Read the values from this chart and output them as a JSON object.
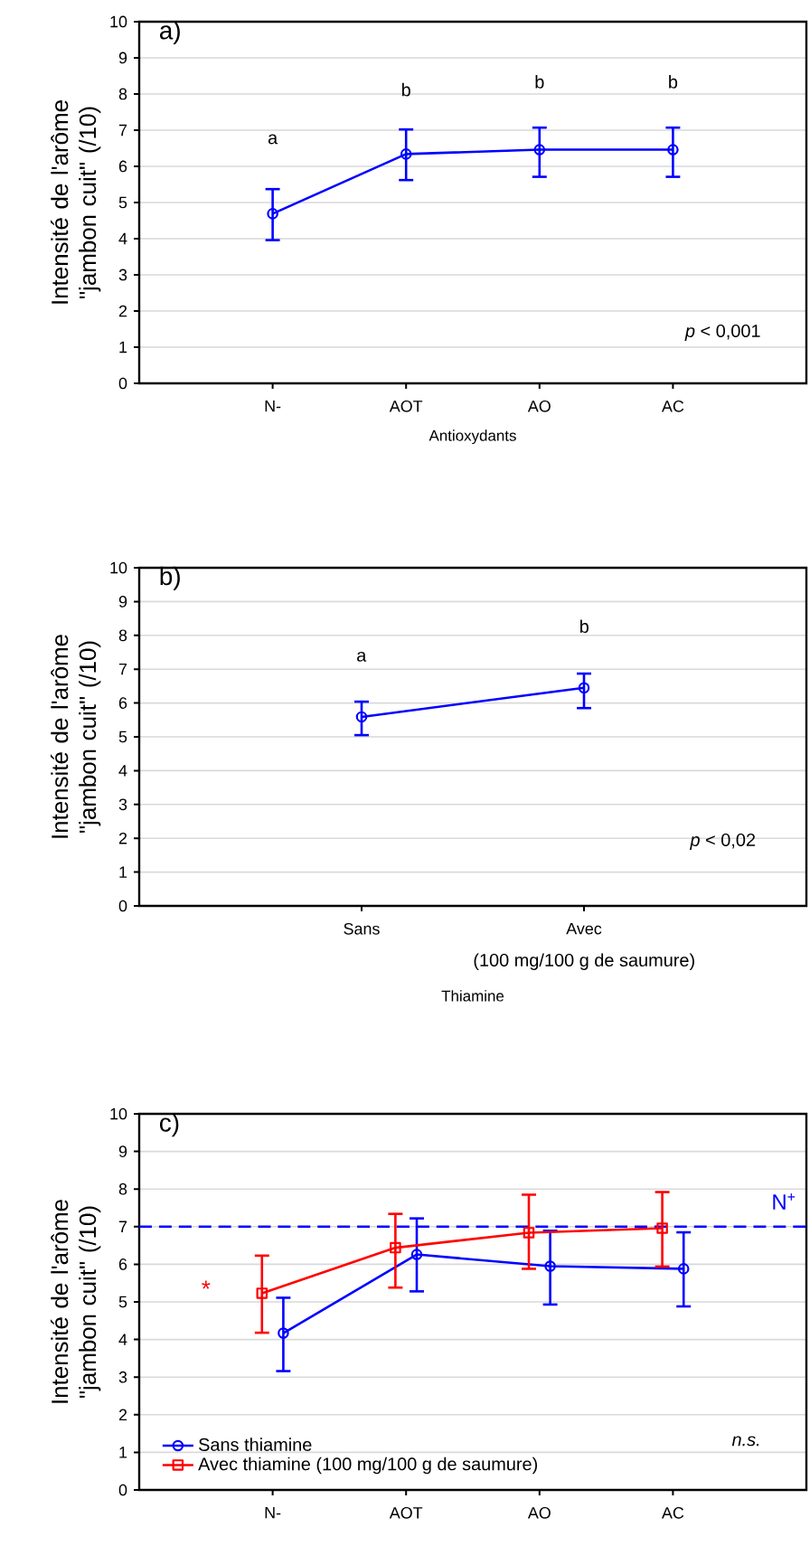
{
  "chart_data": [
    {
      "type": "line",
      "title": "a)",
      "xlabel": "Antioxydants",
      "ylabel": "Intensité de l'arôme \"jambon cuit\" (/10)",
      "categories": [
        "N-",
        "AOT",
        "AO",
        "AC"
      ],
      "values": [
        4.69,
        6.34,
        6.46,
        6.46
      ],
      "errors": [
        [
          3.96,
          5.37
        ],
        [
          5.62,
          7.02
        ],
        [
          5.71,
          7.07
        ],
        [
          5.71,
          7.07
        ]
      ],
      "color": "#0000ff",
      "marker": "circle",
      "ylim": [
        0,
        10
      ],
      "yticks": [
        0,
        1,
        2,
        3,
        4,
        5,
        6,
        7,
        8,
        9,
        10
      ],
      "grid": "y",
      "annotations": [
        "a",
        "b",
        "b",
        "b",
        "*p* < 0,001"
      ]
    },
    {
      "type": "line",
      "title": "b)",
      "xlabel": "Thiamine",
      "ylabel": "Intensité de l'arôme \"jambon cuit\" (/10)",
      "categories": [
        "Sans",
        "Avec"
      ],
      "values": [
        5.59,
        6.45
      ],
      "errors": [
        [
          5.05,
          6.04
        ],
        [
          5.85,
          6.87
        ]
      ],
      "color": "#0000ff",
      "marker": "circle",
      "ylim": [
        0,
        10
      ],
      "yticks": [
        0,
        1,
        2,
        3,
        4,
        5,
        6,
        7,
        8,
        9,
        10
      ],
      "grid": "y",
      "annotations": [
        "a",
        "b",
        "*p* < 0,02",
        "(100 mg/100 g de saumure)"
      ]
    },
    {
      "type": "line",
      "title": "c)",
      "ylabel": "Intensité de l'arôme \"jambon cuit\" (/10)",
      "categories": [
        "N-",
        "AOT",
        "AO",
        "AC"
      ],
      "ylim": [
        0,
        10
      ],
      "yticks": [
        0,
        1,
        2,
        3,
        4,
        5,
        6,
        7,
        8,
        9,
        10
      ],
      "grid": "y",
      "legend": "bottom left",
      "series": [
        {
          "name": "Sans thiamine",
          "color": "#0000ff",
          "marker": "circle",
          "values": [
            4.17,
            6.26,
            5.95,
            5.88
          ],
          "errors": [
            [
              3.16,
              5.11
            ],
            [
              5.28,
              7.22
            ],
            [
              4.93,
              6.89
            ],
            [
              4.88,
              6.85
            ]
          ]
        },
        {
          "name": "Avec thiamine (100 mg/100 g de saumure)",
          "color": "#ff0000",
          "marker": "square",
          "values": [
            5.23,
            6.44,
            6.84,
            6.96
          ],
          "errors": [
            [
              4.18,
              6.23
            ],
            [
              5.38,
              7.34
            ],
            [
              5.88,
              7.85
            ],
            [
              5.94,
              7.92
            ]
          ]
        }
      ],
      "ref_lines": [
        {
          "axis": "y",
          "value": 7,
          "label": "N$^{+}$",
          "color": "#0000ff",
          "line_style": "dashed"
        }
      ],
      "annotations": [
        "*n.s.*",
        "*"
      ]
    }
  ]
}
